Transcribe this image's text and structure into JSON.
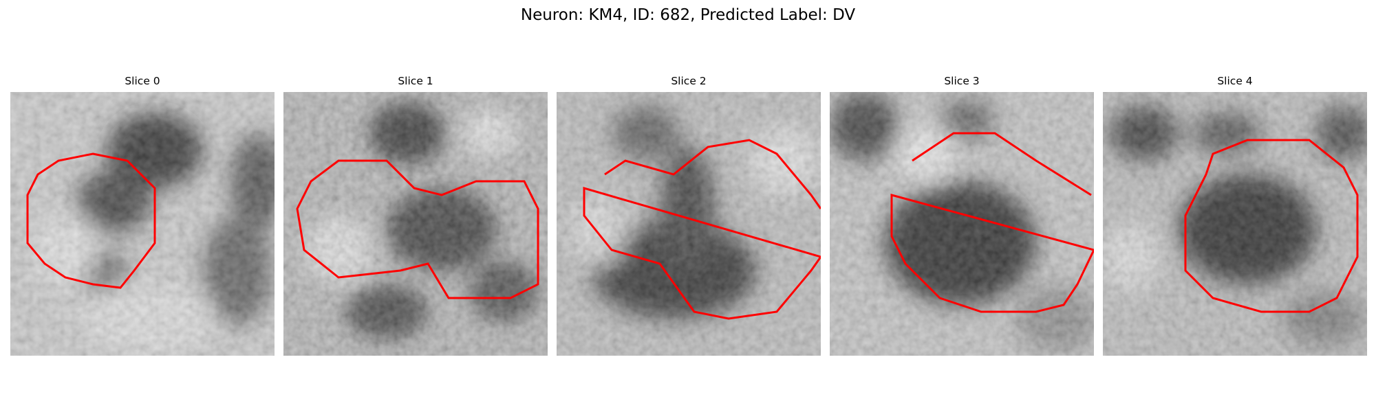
{
  "figure": {
    "title": "Neuron: KM4, ID: 682, Predicted Label: DV",
    "contour_color": "#ff0000"
  },
  "panels": [
    {
      "title": "Slice 0"
    },
    {
      "title": "Slice 1"
    },
    {
      "title": "Slice 2"
    },
    {
      "title": "Slice 3"
    },
    {
      "title": "Slice 4"
    }
  ]
}
